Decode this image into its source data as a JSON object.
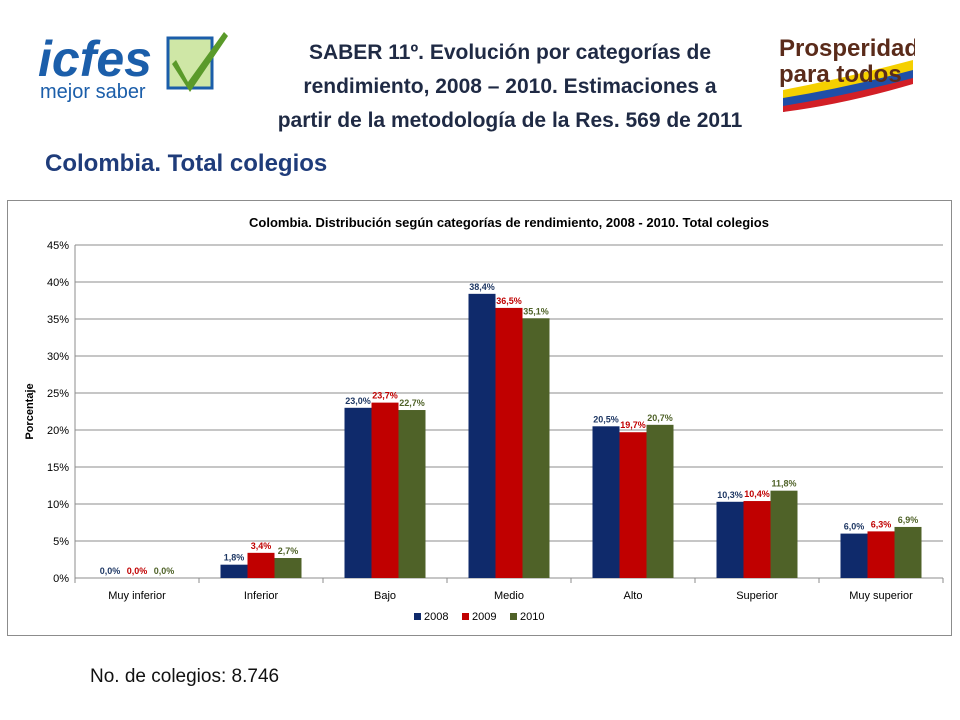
{
  "slide": {
    "title_lines": [
      "SABER 11º. Evolución por categorías de",
      "rendimiento, 2008 – 2010. Estimaciones a",
      "partir de la metodología de la Res. 569 de 2011"
    ],
    "subtitle": "Colombia. Total colegios",
    "footer": "No. de colegios: 8.746"
  },
  "logos": {
    "icfes": {
      "word": "icfes",
      "tagline": "mejor saber"
    },
    "prosperidad": {
      "line1": "Prosperidad",
      "line2": "para todos"
    }
  },
  "chart_data": {
    "type": "bar",
    "title": "Colombia. Distribución según categorías de rendimiento, 2008 - 2010. Total colegios",
    "ylabel": "Porcentaje",
    "xlabel": "",
    "ylim": [
      0,
      45
    ],
    "yticks": [
      "0%",
      "5%",
      "10%",
      "15%",
      "20%",
      "25%",
      "30%",
      "35%",
      "40%",
      "45%"
    ],
    "grid": true,
    "legend_position": "bottom",
    "categories": [
      "Muy inferior",
      "Inferior",
      "Bajo",
      "Medio",
      "Alto",
      "Superior",
      "Muy superior"
    ],
    "series": [
      {
        "name": "2008",
        "color": "#0f2a6b",
        "label_color": "#1f3864",
        "values": [
          0.0,
          1.8,
          23.0,
          38.4,
          20.5,
          10.3,
          6.0
        ],
        "labels": [
          "0,0%",
          "1,8%",
          "23,0%",
          "38,4%",
          "20,5%",
          "10,3%",
          "6,0%"
        ]
      },
      {
        "name": "2009",
        "color": "#c00000",
        "label_color": "#c00000",
        "values": [
          0.0,
          3.4,
          23.7,
          36.5,
          19.7,
          10.4,
          6.3
        ],
        "labels": [
          "0,0%",
          "3,4%",
          "23,7%",
          "36,5%",
          "19,7%",
          "10,4%",
          "6,3%"
        ]
      },
      {
        "name": "2010",
        "color": "#4f6228",
        "label_color": "#4f6228",
        "values": [
          0.0,
          2.7,
          22.7,
          35.1,
          20.7,
          11.8,
          6.9
        ],
        "labels": [
          "0,0%",
          "2,7%",
          "22,7%",
          "35,1%",
          "20,7%",
          "11,8%",
          "6,9%"
        ]
      }
    ]
  }
}
